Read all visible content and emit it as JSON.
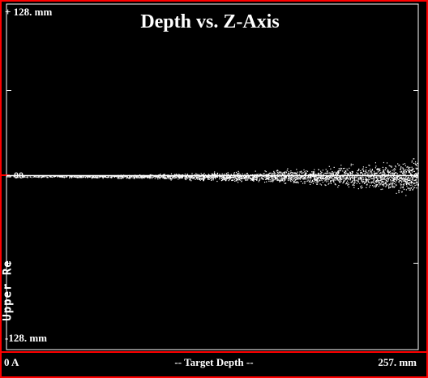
{
  "chart_data": {
    "type": "scatter",
    "title": "Depth vs. Z-Axis",
    "xlabel": "-- Target Depth --",
    "ylabel": "Upper Re",
    "xlim": [
      0,
      257
    ],
    "ylim": [
      -128,
      128
    ],
    "x_tick_labels": {
      "min": "0 A",
      "max": "257. mm"
    },
    "y_tick_labels": {
      "max": "+ 128. mm",
      "min": "-128. mm",
      "zero": "00"
    },
    "grid": false,
    "series": [
      {
        "color": "#ffffff",
        "description_of_distribution": "dense band centered at z=0; spread grows with depth",
        "spread_envelope": [
          [
            0,
            0.3
          ],
          [
            40,
            0.6
          ],
          [
            80,
            1.2
          ],
          [
            120,
            2.0
          ],
          [
            160,
            3.2
          ],
          [
            200,
            5.0
          ],
          [
            230,
            7.0
          ],
          [
            257,
            11.0
          ]
        ]
      }
    ]
  },
  "colors": {
    "background": "#000000",
    "frame": "#ff0000",
    "axis": "#ffffff",
    "points": "#ffffff"
  }
}
